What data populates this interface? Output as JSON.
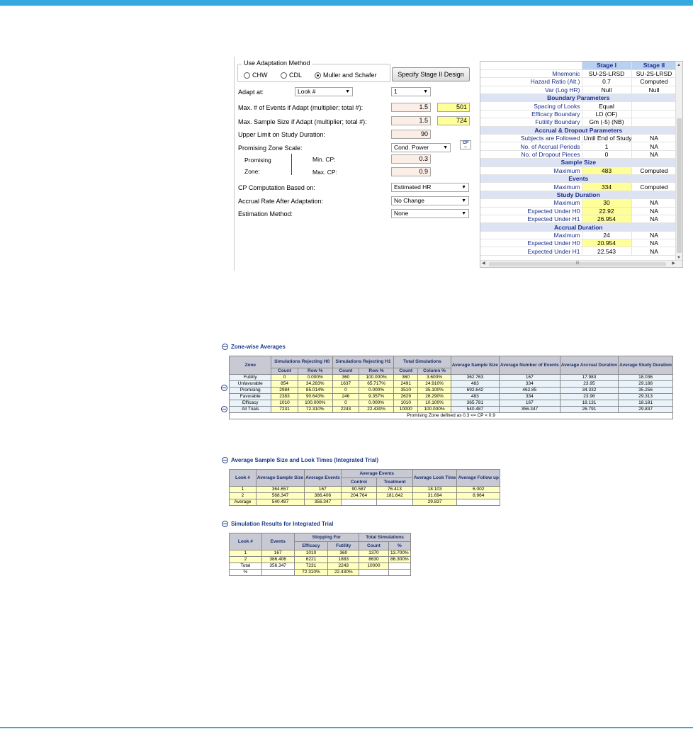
{
  "adaptation": {
    "method_legend": "Use Adaptation Method",
    "methods": [
      "CHW",
      "CDL",
      "Muller and Schafer"
    ],
    "selected_method": "Muller and Schafer",
    "specify_button": "Specify Stage II Design",
    "adapt_at_label": "Adapt at:",
    "adapt_at_value": "Look #",
    "look_value": "1",
    "max_events_label": "Max. # of Events if Adapt (multiplier; total #):",
    "max_events_multiplier": "1.5",
    "max_events_total": "501",
    "max_sample_label": "Max. Sample Size if Adapt (multiplier; total #):",
    "max_sample_multiplier": "1.5",
    "max_sample_total": "724",
    "upper_limit_label": "Upper Limit on Study Duration:",
    "upper_limit_value": "90",
    "pz_scale_label": "Promising Zone Scale:",
    "pz_scale_value": "Cond. Power",
    "cp_icon": "CP",
    "promising_label": "Promising",
    "zone_label": "Zone:",
    "min_cp_label": "Min. CP:",
    "min_cp_value": "0.3",
    "max_cp_label": "Max. CP:",
    "max_cp_value": "0.9",
    "cp_comp_label": "CP Computation Based on:",
    "cp_comp_value": "Estimated HR",
    "accrual_label": "Accrual Rate After Adaptation:",
    "accrual_value": "No Change",
    "estimation_label": "Estimation Method:",
    "estimation_value": "None"
  },
  "stage_grid": {
    "header": [
      "Stage I",
      "Stage II"
    ],
    "rows": [
      {
        "kind": "row",
        "label": "Mnemonic",
        "s1": "SU-2S-LRSD",
        "s2": "SU-2S-LRSD",
        "y1": false,
        "y2": false
      },
      {
        "kind": "row",
        "label": "Hazard Ratio (Alt.)",
        "s1": "0.7",
        "s2": "Computed",
        "y1": false,
        "y2": false
      },
      {
        "kind": "row",
        "label": "Var (Log HR)",
        "s1": "Null",
        "s2": "Null",
        "y1": false,
        "y2": false
      },
      {
        "kind": "section",
        "label": "Boundary Parameters"
      },
      {
        "kind": "row",
        "label": "Spacing of Looks",
        "s1": "Equal",
        "s2": "",
        "y1": false,
        "y2": false
      },
      {
        "kind": "row",
        "label": "Efficacy Boundary",
        "s1": "LD (OF)",
        "s2": "",
        "y1": false,
        "y2": false
      },
      {
        "kind": "row",
        "label": "Futility Boundary",
        "s1": "Gm (-5) (NB)",
        "s2": "",
        "y1": false,
        "y2": false
      },
      {
        "kind": "section",
        "label": "Accrual & Dropout Parameters"
      },
      {
        "kind": "row",
        "label": "Subjects are Followed",
        "s1": "Until End of Study",
        "s2": "NA",
        "y1": false,
        "y2": false
      },
      {
        "kind": "row",
        "label": "No. of Accrual Periods",
        "s1": "1",
        "s2": "NA",
        "y1": false,
        "y2": false
      },
      {
        "kind": "row",
        "label": "No. of Dropout Pieces",
        "s1": "0",
        "s2": "NA",
        "y1": false,
        "y2": false
      },
      {
        "kind": "section",
        "label": "Sample Size"
      },
      {
        "kind": "row",
        "label": "Maximum",
        "s1": "483",
        "s2": "Computed",
        "y1": true,
        "y2": false
      },
      {
        "kind": "section",
        "label": "Events"
      },
      {
        "kind": "row",
        "label": "Maximum",
        "s1": "334",
        "s2": "Computed",
        "y1": true,
        "y2": false
      },
      {
        "kind": "section",
        "label": "Study Duration"
      },
      {
        "kind": "row",
        "label": "Maximum",
        "s1": "30",
        "s2": "NA",
        "y1": true,
        "y2": false
      },
      {
        "kind": "row",
        "label": "Expected Under H0",
        "s1": "22.92",
        "s2": "NA",
        "y1": true,
        "y2": false
      },
      {
        "kind": "row",
        "label": "Expected Under H1",
        "s1": "26.954",
        "s2": "NA",
        "y1": true,
        "y2": false
      },
      {
        "kind": "section",
        "label": "Accrual Duration"
      },
      {
        "kind": "row",
        "label": "Maximum",
        "s1": "24",
        "s2": "NA",
        "y1": false,
        "y2": false
      },
      {
        "kind": "row",
        "label": "Expected Under H0",
        "s1": "20.954",
        "s2": "NA",
        "y1": true,
        "y2": false
      },
      {
        "kind": "row",
        "label": "Expected Under H1",
        "s1": "22.543",
        "s2": "NA",
        "y1": false,
        "y2": false
      }
    ],
    "scroll_grip": "III"
  },
  "zone": {
    "title": "Zone-wise Averages",
    "head": {
      "zone": "Zone",
      "rej_h0": "Simulations Rejecting H0",
      "rej_h1": "Simulations Rejecting H1",
      "total": "Total Simulations",
      "avg_ss": "Average Sample Size",
      "avg_ev": "Average Number of Events",
      "avg_acc": "Average Accrual Duration",
      "avg_study": "Average Study Duration",
      "count": "Count",
      "row_pct": "Row %",
      "col_pct": "Column %"
    },
    "rows": [
      [
        "Futility",
        "0",
        "0.000%",
        "360",
        "100.000%",
        "360",
        "3.600%",
        "362.763",
        "167",
        "17.983",
        "18.036"
      ],
      [
        "Unfavorable",
        "854",
        "34.283%",
        "1637",
        "65.717%",
        "2491",
        "24.910%",
        "483",
        "334",
        "23.95",
        "29.188"
      ],
      [
        "Promising",
        "2984",
        "85.014%",
        "0",
        "0.000%",
        "3510",
        "35.100%",
        "692.642",
        "462.85",
        "34.332",
        "35.256"
      ],
      [
        "Favorable",
        "2383",
        "90.643%",
        "246",
        "9.357%",
        "2629",
        "26.290%",
        "483",
        "334",
        "23.96",
        "29.313"
      ],
      [
        "Efficacy",
        "1010",
        "100.000%",
        "0",
        "0.000%",
        "1010",
        "10.100%",
        "365.781",
        "167",
        "18.131",
        "18.181"
      ],
      [
        "All Trials",
        "7231",
        "72.310%",
        "2243",
        "22.430%",
        "10000",
        "100.000%",
        "540.487",
        "356.347",
        "26.791",
        "29.837"
      ]
    ],
    "note": "Promising Zone defined as 0.3 <= CP < 0.9"
  },
  "ss_look": {
    "title": "Average Sample Size and Look Times (Integrated Trial)",
    "head": {
      "look": "Look #",
      "avg_ss": "Average Sample Size",
      "avg_ev": "Average Events",
      "avg_events_group": "Average Events",
      "control": "Control",
      "treatment": "Treatment",
      "look_time": "Average Look Time",
      "follow": "Average Follow up"
    },
    "rows": [
      [
        "1",
        "364.657",
        "167",
        "90.587",
        "76.413",
        "18.103",
        "6.002"
      ],
      [
        "2",
        "568.347",
        "386.406",
        "204.764",
        "181.642",
        "31.694",
        "8.964"
      ],
      [
        "Average",
        "540.487",
        "356.347",
        "",
        "",
        "29.837",
        ""
      ]
    ]
  },
  "sim_results": {
    "title": "Simulation Results for Integrated Trial",
    "head": {
      "look": "Look #",
      "events": "Events",
      "stopping": "Stopping For",
      "efficacy": "Efficacy",
      "futility": "Futility",
      "total": "Total Simulations",
      "count": "Count",
      "pct": "%"
    },
    "rows": [
      [
        "1",
        "167",
        "1010",
        "360",
        "1370",
        "13.700%"
      ],
      [
        "2",
        "386.406",
        "6221",
        "1883",
        "8630",
        "86.300%"
      ],
      [
        "Total",
        "356.347",
        "7231",
        "2243",
        "10000",
        ""
      ],
      [
        "%",
        "",
        "72.310%",
        "22.430%",
        "",
        ""
      ]
    ]
  },
  "colors": {
    "accent": "#35a8e0",
    "header_blue": "#b9d0f0",
    "yellow": "#ffff99",
    "input_peach": "#fbeee6"
  }
}
